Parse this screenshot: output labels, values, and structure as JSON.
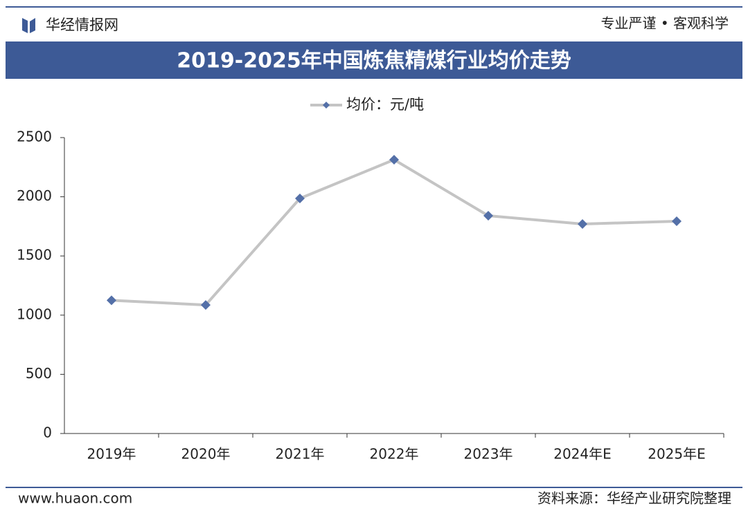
{
  "header": {
    "brand": "华经情报网",
    "slogan": "专业严谨 • 客观科学"
  },
  "footer": {
    "website": "www.huaon.com",
    "source": "资料来源：华经产业研究院整理"
  },
  "chart_data": {
    "type": "line",
    "title": "2019-2025年中国炼焦精煤行业均价走势",
    "categories": [
      "2019年",
      "2020年",
      "2021年",
      "2022年",
      "2023年",
      "2024年E",
      "2025年E"
    ],
    "series": [
      {
        "name": "均价：元/吨",
        "color": "#c4c4c4",
        "marker_color": "#5470a8",
        "values": [
          1125,
          1086,
          1986,
          2313,
          1840,
          1770,
          1793
        ]
      }
    ],
    "ylim": [
      0,
      2500
    ],
    "yticks": [
      0,
      500,
      1000,
      1500,
      2000,
      2500
    ]
  }
}
